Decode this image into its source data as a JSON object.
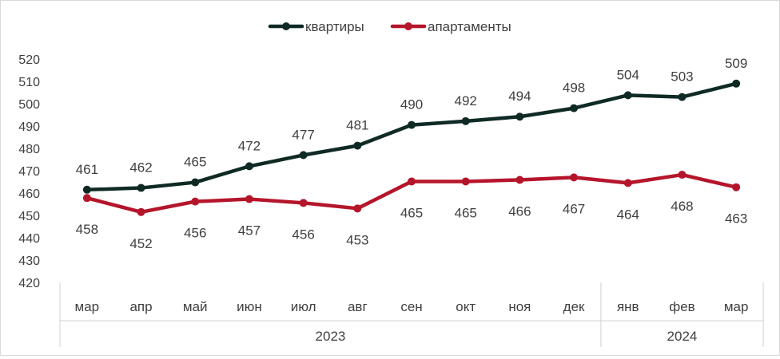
{
  "chart_data": {
    "type": "line",
    "categories": [
      "мар",
      "апр",
      "май",
      "июн",
      "июл",
      "авг",
      "сен",
      "окт",
      "ноя",
      "дек",
      "янв",
      "фев",
      "мар"
    ],
    "groups": [
      {
        "label": "2023",
        "span": 10
      },
      {
        "label": "2024",
        "span": 3
      }
    ],
    "series": [
      {
        "name": "квартиры",
        "color": "#0f2a24",
        "values": [
          461,
          462,
          465,
          472,
          477,
          481,
          490,
          492,
          494,
          498,
          504,
          503,
          509
        ],
        "plotted": [
          461.5,
          462.3,
          464.8,
          472,
          477,
          481.2,
          490.5,
          492.2,
          494.2,
          498,
          503.8,
          503,
          509
        ],
        "label_position": "above"
      },
      {
        "name": "апартаменты",
        "color": "#b5152b",
        "values": [
          458,
          452,
          456,
          457,
          456,
          453,
          465,
          465,
          466,
          467,
          464,
          468,
          463
        ],
        "plotted": [
          457.8,
          451.5,
          456.2,
          457.3,
          455.6,
          453.1,
          465.2,
          465.2,
          465.9,
          467,
          464.5,
          468.2,
          462.6
        ],
        "label_position": "below"
      }
    ],
    "yticks": [
      420,
      430,
      440,
      450,
      460,
      470,
      480,
      490,
      500,
      510,
      520
    ],
    "ylim": [
      420,
      520
    ],
    "grid": false,
    "legend": "top-center",
    "title": "",
    "xlabel": "",
    "ylabel": ""
  }
}
